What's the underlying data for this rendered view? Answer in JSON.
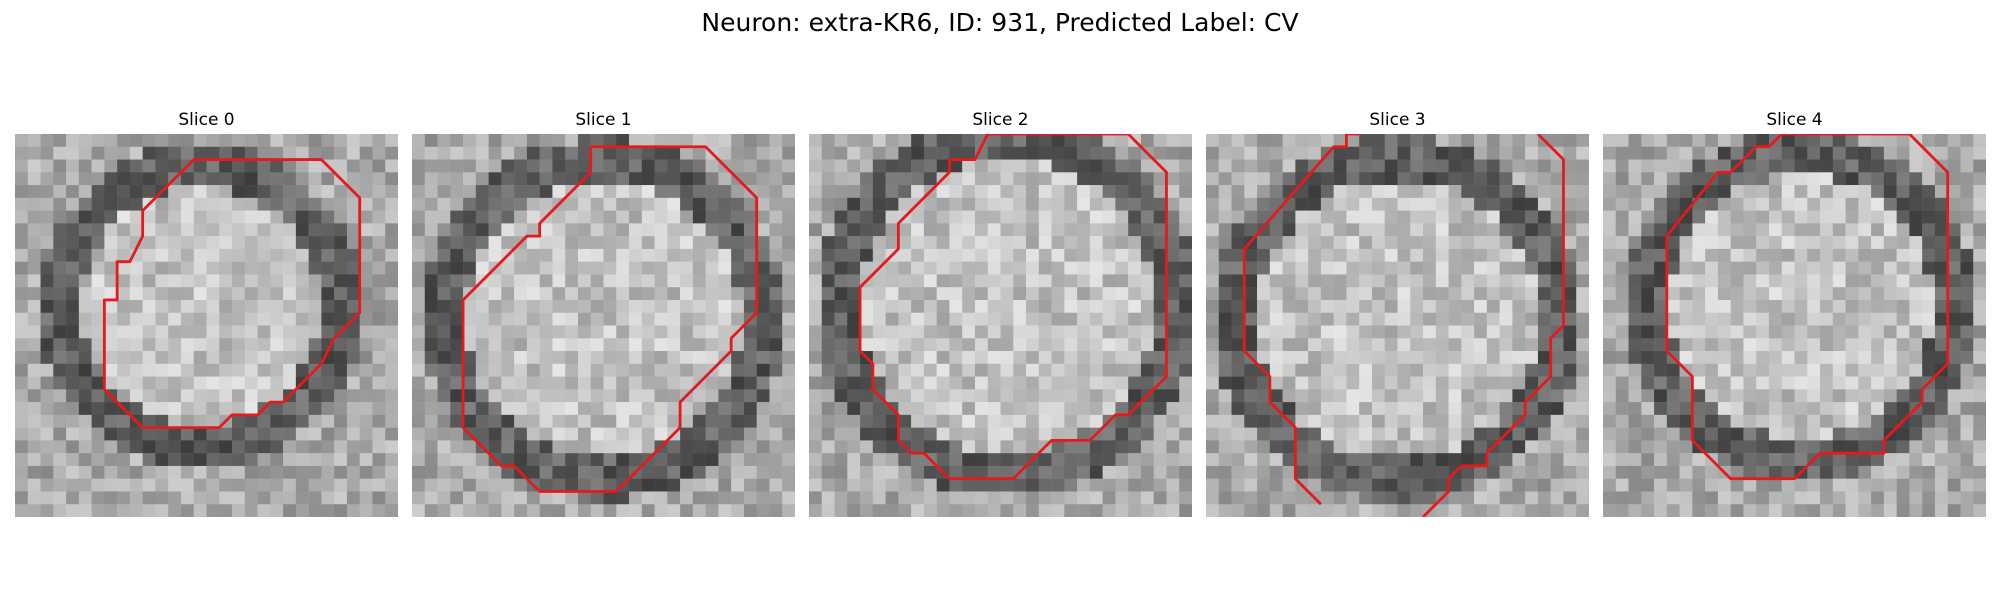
{
  "figure": {
    "title": "Neuron: extra-KR6, ID: 931, Predicted Label: CV",
    "contour_color": "#e41a1c",
    "grid_size": 30
  },
  "slices": [
    {
      "title": "Slice 0",
      "contour": [
        [
          14,
          2
        ],
        [
          24,
          2
        ],
        [
          27,
          5
        ],
        [
          27,
          14
        ],
        [
          25,
          16
        ],
        [
          24,
          18
        ],
        [
          21,
          21
        ],
        [
          20,
          21
        ],
        [
          19,
          22
        ],
        [
          17,
          22
        ],
        [
          16,
          23
        ],
        [
          10,
          23
        ],
        [
          7,
          20
        ],
        [
          7,
          13
        ],
        [
          8,
          13
        ],
        [
          8,
          10
        ],
        [
          9,
          10
        ],
        [
          10,
          8
        ],
        [
          10,
          6
        ],
        [
          14,
          2
        ]
      ]
    },
    {
      "title": "Slice 1",
      "contour": [
        [
          14,
          1
        ],
        [
          23,
          1
        ],
        [
          27,
          5
        ],
        [
          27,
          14
        ],
        [
          25,
          16
        ],
        [
          25,
          17
        ],
        [
          21,
          21
        ],
        [
          21,
          23
        ],
        [
          16,
          28
        ],
        [
          10,
          28
        ],
        [
          8,
          26
        ],
        [
          7,
          26
        ],
        [
          4,
          23
        ],
        [
          4,
          13
        ],
        [
          9,
          8
        ],
        [
          10,
          8
        ],
        [
          10,
          7
        ],
        [
          14,
          3
        ],
        [
          14,
          1
        ]
      ]
    },
    {
      "title": "Slice 2",
      "contour": [
        [
          14,
          0
        ],
        [
          25,
          0
        ],
        [
          28,
          3
        ],
        [
          28,
          19
        ],
        [
          25,
          22
        ],
        [
          24,
          22
        ],
        [
          22,
          24
        ],
        [
          19,
          24
        ],
        [
          16,
          27
        ],
        [
          11,
          27
        ],
        [
          9,
          25
        ],
        [
          8,
          25
        ],
        [
          7,
          24
        ],
        [
          7,
          22
        ],
        [
          5,
          20
        ],
        [
          5,
          18
        ],
        [
          4,
          17
        ],
        [
          4,
          12
        ],
        [
          7,
          9
        ],
        [
          7,
          7
        ],
        [
          11,
          3
        ],
        [
          11,
          2
        ],
        [
          13,
          2
        ],
        [
          14,
          0
        ]
      ]
    },
    {
      "title": "Slice 3",
      "contour_a": [
        [
          12,
          0
        ],
        [
          11,
          0
        ],
        [
          11,
          1
        ],
        [
          10,
          1
        ],
        [
          3,
          9
        ],
        [
          3,
          17
        ],
        [
          5,
          19
        ],
        [
          5,
          21
        ],
        [
          7,
          23
        ],
        [
          7,
          27
        ],
        [
          9,
          29
        ]
      ],
      "contour_b": [
        [
          26,
          0
        ],
        [
          28,
          2
        ],
        [
          28,
          15
        ],
        [
          27,
          16
        ],
        [
          27,
          19
        ],
        [
          25,
          21
        ],
        [
          25,
          22
        ],
        [
          22,
          25
        ],
        [
          22,
          26
        ],
        [
          20,
          26
        ],
        [
          19,
          27
        ],
        [
          19,
          28
        ],
        [
          18,
          29
        ],
        [
          17,
          30
        ]
      ]
    },
    {
      "title": "Slice 4",
      "contour": [
        [
          14,
          0
        ],
        [
          24,
          0
        ],
        [
          27,
          3
        ],
        [
          27,
          18
        ],
        [
          25,
          20
        ],
        [
          25,
          21
        ],
        [
          22,
          24
        ],
        [
          22,
          25
        ],
        [
          17,
          25
        ],
        [
          15,
          27
        ],
        [
          10,
          27
        ],
        [
          7,
          24
        ],
        [
          7,
          19
        ],
        [
          5,
          17
        ],
        [
          5,
          8
        ],
        [
          9,
          3
        ],
        [
          10,
          3
        ],
        [
          12,
          1
        ],
        [
          13,
          1
        ],
        [
          14,
          0
        ]
      ]
    }
  ]
}
